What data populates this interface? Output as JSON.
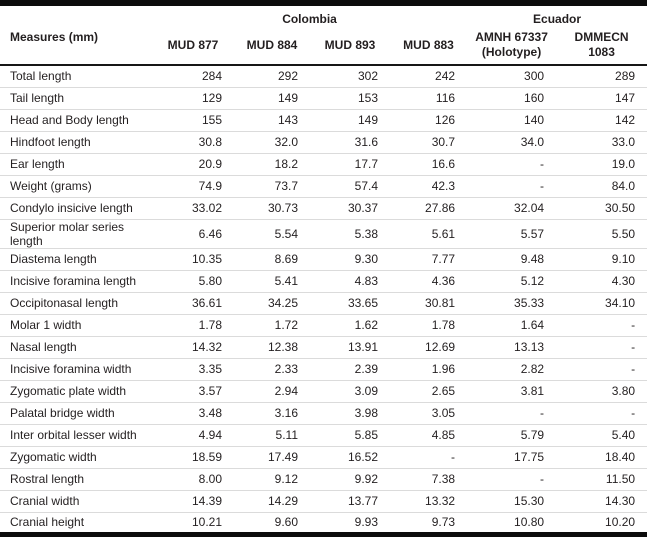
{
  "table": {
    "corner_header": "Measures (mm)",
    "groups": [
      {
        "label": "Colombia",
        "colspan": 4
      },
      {
        "label": "Ecuador",
        "colspan": 2
      }
    ],
    "columns": [
      "MUD 877",
      "MUD 884",
      "MUD 893",
      "MUD 883",
      "AMNH 67337\n(Holotype)",
      "DMMECN\n1083"
    ],
    "rows": [
      {
        "measure": "Total length",
        "values": [
          "284",
          "292",
          "302",
          "242",
          "300",
          "289"
        ]
      },
      {
        "measure": "Tail length",
        "values": [
          "129",
          "149",
          "153",
          "116",
          "160",
          "147"
        ]
      },
      {
        "measure": "Head and Body length",
        "values": [
          "155",
          "143",
          "149",
          "126",
          "140",
          "142"
        ]
      },
      {
        "measure": "Hindfoot length",
        "values": [
          "30.8",
          "32.0",
          "31.6",
          "30.7",
          "34.0",
          "33.0"
        ]
      },
      {
        "measure": "Ear length",
        "values": [
          "20.9",
          "18.2",
          "17.7",
          "16.6",
          "-",
          "19.0"
        ]
      },
      {
        "measure": "Weight (grams)",
        "values": [
          "74.9",
          "73.7",
          "57.4",
          "42.3",
          "-",
          "84.0"
        ]
      },
      {
        "measure": "Condylo insicive length",
        "values": [
          "33.02",
          "30.73",
          "30.37",
          "27.86",
          "32.04",
          "30.50"
        ]
      },
      {
        "measure": "Superior molar series length",
        "values": [
          "6.46",
          "5.54",
          "5.38",
          "5.61",
          "5.57",
          "5.50"
        ]
      },
      {
        "measure": "Diastema length",
        "values": [
          "10.35",
          "8.69",
          "9.30",
          "7.77",
          "9.48",
          "9.10"
        ]
      },
      {
        "measure": "Incisive foramina length",
        "values": [
          "5.80",
          "5.41",
          "4.83",
          "4.36",
          "5.12",
          "4.30"
        ]
      },
      {
        "measure": "Occipitonasal length",
        "values": [
          "36.61",
          "34.25",
          "33.65",
          "30.81",
          "35.33",
          "34.10"
        ]
      },
      {
        "measure": "Molar 1 width",
        "values": [
          "1.78",
          "1.72",
          "1.62",
          "1.78",
          "1.64",
          "-"
        ]
      },
      {
        "measure": "Nasal length",
        "values": [
          "14.32",
          "12.38",
          "13.91",
          "12.69",
          "13.13",
          "-"
        ]
      },
      {
        "measure": "Incisive foramina width",
        "values": [
          "3.35",
          "2.33",
          "2.39",
          "1.96",
          "2.82",
          "-"
        ]
      },
      {
        "measure": "Zygomatic plate width",
        "values": [
          "3.57",
          "2.94",
          "3.09",
          "2.65",
          "3.81",
          "3.80"
        ]
      },
      {
        "measure": "Palatal bridge width",
        "values": [
          "3.48",
          "3.16",
          "3.98",
          "3.05",
          "-",
          "-"
        ]
      },
      {
        "measure": "Inter orbital lesser width",
        "values": [
          "4.94",
          "5.11",
          "5.85",
          "4.85",
          "5.79",
          "5.40"
        ]
      },
      {
        "measure": "Zygomatic width",
        "values": [
          "18.59",
          "17.49",
          "16.52",
          "-",
          "17.75",
          "18.40"
        ]
      },
      {
        "measure": "Rostral length",
        "values": [
          "8.00",
          "9.12",
          "9.92",
          "7.38",
          "-",
          "11.50"
        ]
      },
      {
        "measure": "Cranial width",
        "values": [
          "14.39",
          "14.29",
          "13.77",
          "13.32",
          "15.30",
          "14.30"
        ]
      },
      {
        "measure": "Cranial height",
        "values": [
          "10.21",
          "9.60",
          "9.93",
          "9.73",
          "10.80",
          "10.20"
        ]
      }
    ]
  },
  "colors": {
    "text": "#231f20",
    "heavy_rule": "#0c0c0c",
    "header_rule": "#161616",
    "row_rule": "#dbdbdb",
    "background": "#ffffff"
  }
}
